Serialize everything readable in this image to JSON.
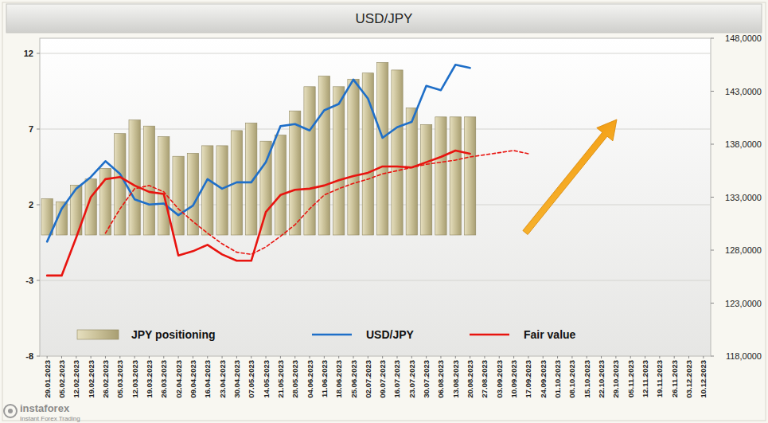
{
  "chart_data": {
    "type": "bar",
    "title": "USD/JPY",
    "annotations": [
      "instaforex",
      "Instant Forex Trading"
    ],
    "categories": [
      "29.01.2023",
      "05.02.2023",
      "12.02.2023",
      "19.02.2023",
      "26.02.2023",
      "05.03.2023",
      "12.03.2023",
      "19.03.2023",
      "26.03.2023",
      "02.04.2023",
      "09.04.2023",
      "16.04.2023",
      "23.04.2023",
      "30.04.2023",
      "07.05.2023",
      "14.05.2023",
      "21.05.2023",
      "28.05.2023",
      "04.06.2023",
      "11.06.2023",
      "18.06.2023",
      "25.06.2023",
      "02.07.2023",
      "09.07.2023",
      "16.07.2023",
      "23.07.2023",
      "30.07.2023",
      "06.08.2023",
      "13.08.2023",
      "20.08.2023",
      "27.08.2023",
      "03.09.2023",
      "10.09.2023",
      "17.09.2023",
      "24.09.2023",
      "01.10.2023",
      "08.10.2023",
      "15.10.2023",
      "22.10.2023",
      "29.10.2023",
      "05.11.2023",
      "12.11.2023",
      "19.11.2023",
      "26.11.2023",
      "03.12.2023",
      "10.12.2023"
    ],
    "series": [
      {
        "name": "JPY positioning",
        "type": "bar",
        "color": "#c9c097",
        "values": [
          2.4,
          2.2,
          3.3,
          3.7,
          4.4,
          6.7,
          7.6,
          7.2,
          6.5,
          5.2,
          5.4,
          5.9,
          5.9,
          6.9,
          7.4,
          6.2,
          6.6,
          8.2,
          9.8,
          10.5,
          9.8,
          10.3,
          10.7,
          11.4,
          10.9,
          8.4,
          7.3,
          7.8,
          7.8,
          7.8,
          null,
          null,
          null,
          null,
          null,
          null,
          null,
          null,
          null,
          null,
          null,
          null,
          null,
          null,
          null,
          null
        ]
      },
      {
        "name": "USD/JPY",
        "type": "line",
        "axis": "y2",
        "color": "#1f6fc8",
        "line_style": "solid",
        "values": [
          128.8,
          131.9,
          133.8,
          134.9,
          136.4,
          135.2,
          132.8,
          132.3,
          132.4,
          131.3,
          132.2,
          134.7,
          133.8,
          134.4,
          134.4,
          136.3,
          139.7,
          139.9,
          139.3,
          141.2,
          141.8,
          144.1,
          142.3,
          138.6,
          139.6,
          140.1,
          143.5,
          143.1,
          145.5,
          145.2,
          null,
          null,
          null,
          null,
          null,
          null,
          null,
          null,
          null,
          null,
          null,
          null,
          null,
          null,
          null,
          null
        ]
      },
      {
        "name": "Fair value",
        "type": "line",
        "axis": "y2",
        "color": "#e8140f",
        "line_style": "solid",
        "values": [
          125.6,
          125.6,
          129.2,
          133.0,
          134.7,
          134.9,
          134.1,
          133.5,
          133.3,
          127.5,
          127.9,
          128.5,
          127.6,
          127.0,
          127.0,
          131.6,
          133.2,
          133.7,
          133.8,
          134.1,
          134.6,
          135.0,
          135.3,
          135.9,
          135.9,
          135.8,
          136.3,
          136.8,
          137.4,
          137.1,
          null,
          null,
          null,
          null,
          null,
          null,
          null,
          null,
          null,
          null,
          null,
          null,
          null,
          null,
          null,
          null
        ]
      },
      {
        "type": "line",
        "axis": "y2",
        "color": "#e8140f",
        "line_style": "dashed",
        "values": [
          null,
          null,
          null,
          null,
          129.6,
          131.9,
          133.8,
          134.1,
          133.5,
          131.9,
          130.7,
          129.6,
          128.6,
          127.8,
          127.6,
          128.3,
          129.3,
          130.4,
          131.9,
          133.2,
          133.8,
          134.3,
          134.7,
          135.2,
          135.5,
          135.8,
          136.1,
          136.3,
          136.5,
          136.8,
          137.0,
          137.2,
          137.4,
          137.1,
          null,
          null,
          null,
          null,
          null,
          null,
          null,
          null,
          null,
          null,
          null,
          null
        ]
      }
    ],
    "ylim": [
      -8,
      13
    ],
    "yticks": [
      -8,
      -3,
      2,
      7,
      12
    ],
    "y2lim": [
      118,
      148
    ],
    "y2ticks": [
      {
        "value": 118,
        "label": "118,0000"
      },
      {
        "value": 123,
        "label": "123,0000"
      },
      {
        "value": 128,
        "label": "128,0000"
      },
      {
        "value": 133,
        "label": "133,0000"
      },
      {
        "value": 138,
        "label": "138,0000"
      },
      {
        "value": 143,
        "label": "143,0000"
      },
      {
        "value": 148,
        "label": "148,0000"
      }
    ],
    "grid": true,
    "legend": "bottom"
  }
}
